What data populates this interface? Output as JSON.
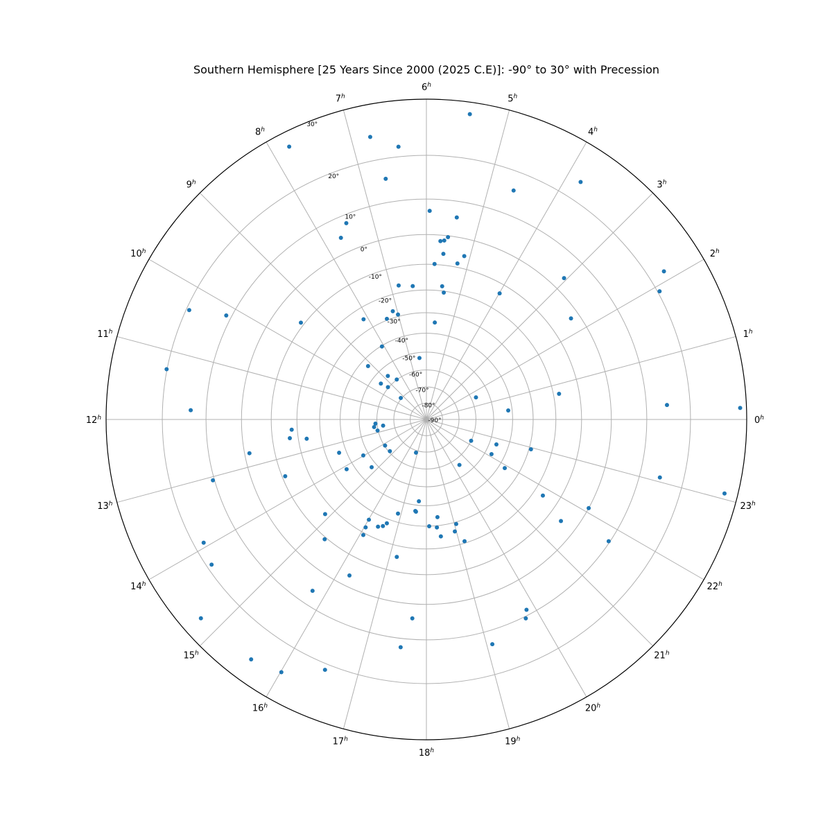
{
  "chart_data": {
    "type": "scatter",
    "projection": "polar (stereographic, south pole at center)",
    "title": "Southern Hemisphere [25 Years Since 2000 (2025 C.E)]: -90° to 30° with Precession",
    "theta_unit": "hours",
    "theta_ticks": [
      "0",
      "1",
      "2",
      "3",
      "4",
      "5",
      "6",
      "7",
      "8",
      "9",
      "10",
      "11",
      "12",
      "13",
      "14",
      "15",
      "16",
      "17",
      "18",
      "19",
      "20",
      "21",
      "22",
      "23"
    ],
    "theta_tick_suffix": "h",
    "r_ticks": [
      "-90°",
      "-80°",
      "-70°",
      "-60°",
      "-50°",
      "-40°",
      "-30°",
      "-20°",
      "-10°",
      "0°",
      "10°",
      "20°",
      "30°"
    ],
    "r_values": [
      -90,
      -80,
      -70,
      -60,
      -50,
      -40,
      -30,
      -20,
      -10,
      0,
      10,
      20,
      30
    ],
    "rlim": [
      -90,
      30
    ],
    "grid": true,
    "marker_color": "#1f77b4",
    "grid_color": "#b0b0b0",
    "points": [
      [
        5.46,
        28.1
      ],
      [
        6.75,
        24.6
      ],
      [
        6.39,
        22.0
      ],
      [
        7.78,
        27.6
      ],
      [
        6.64,
        15.7
      ],
      [
        4.61,
        15.9
      ],
      [
        3.8,
        23.7
      ],
      [
        5.94,
        6.9
      ],
      [
        5.43,
        5.7
      ],
      [
        7.48,
        7.8
      ],
      [
        7.68,
        4.7
      ],
      [
        5.55,
        -0.4
      ],
      [
        5.62,
        -1.6
      ],
      [
        5.7,
        -1.9
      ],
      [
        5.13,
        -5.6
      ],
      [
        5.61,
        -6.0
      ],
      [
        5.8,
        -9.8
      ],
      [
        5.25,
        -8.6
      ],
      [
        2.13,
        23.1
      ],
      [
        3.05,
        3.7
      ],
      [
        1.92,
        20.4
      ],
      [
        6.78,
        -17.0
      ],
      [
        6.39,
        -18.1
      ],
      [
        5.55,
        -18.1
      ],
      [
        5.48,
        -20.6
      ],
      [
        3.99,
        -13.5
      ],
      [
        7.15,
        -27.0
      ],
      [
        7.01,
        -29.1
      ],
      [
        10.17,
        11.3
      ],
      [
        10.35,
        19.4
      ],
      [
        8.14,
        -24.8
      ],
      [
        7.43,
        -29.4
      ],
      [
        9.49,
        -8.8
      ],
      [
        5.67,
        -34.5
      ],
      [
        2.33,
        -2.7
      ],
      [
        8.09,
        -40.4
      ],
      [
        6.43,
        -53.0
      ],
      [
        9.17,
        -43.7
      ],
      [
        11.27,
        20.1
      ],
      [
        8.77,
        -55.1
      ],
      [
        8.44,
        -59.9
      ],
      [
        9.45,
        -55.2
      ],
      [
        9.33,
        -59.6
      ],
      [
        0.73,
        -17.7
      ],
      [
        1.6,
        -57.3
      ],
      [
        9.33,
        -69.5
      ],
      [
        0.23,
        15.0
      ],
      [
        0.14,
        29.0
      ],
      [
        0.42,
        -42.0
      ],
      [
        11.85,
        13.8
      ],
      [
        12.31,
        -59.1
      ],
      [
        12.55,
        -58.1
      ],
      [
        12.85,
        -59.7
      ],
      [
        12.54,
        -63.4
      ],
      [
        12.29,
        -17.7
      ],
      [
        12.52,
        -16.6
      ],
      [
        12.61,
        -23.5
      ],
      [
        22.3,
        -60.0
      ],
      [
        22.69,
        -46.2
      ],
      [
        22.94,
        -29.1
      ],
      [
        14.15,
        -60.4
      ],
      [
        14.73,
        -60.7
      ],
      [
        16.84,
        -68.7
      ],
      [
        13.39,
        -36.4
      ],
      [
        13.98,
        -47.1
      ],
      [
        22.13,
        -46.5
      ],
      [
        12.72,
        -1.5
      ],
      [
        20.4,
        -56.2
      ],
      [
        14.74,
        -47.1
      ],
      [
        21.88,
        -37.0
      ],
      [
        14.13,
        -36.1
      ],
      [
        13.46,
        -11.1
      ],
      [
        23.07,
        14.9
      ],
      [
        13.06,
        10.4
      ],
      [
        23.07,
        27.9
      ],
      [
        21.79,
        -16.1
      ],
      [
        17.65,
        -42.1
      ],
      [
        17.54,
        -37.0
      ],
      [
        17.57,
        -36.7
      ],
      [
        14.87,
        -16.3
      ],
      [
        16.88,
        -34.0
      ],
      [
        18.43,
        -34.0
      ],
      [
        22.09,
        0.0
      ],
      [
        16.01,
        -26.0
      ],
      [
        21.53,
        -5.3
      ],
      [
        16.61,
        -28.0
      ],
      [
        16.38,
        -25.1
      ],
      [
        16.52,
        -26.2
      ],
      [
        16.04,
        -22.4
      ],
      [
        19.06,
        -29.1
      ],
      [
        18.1,
        -30.0
      ],
      [
        18.37,
        -29.2
      ],
      [
        18.95,
        -26.0
      ],
      [
        16.09,
        -19.1
      ],
      [
        18.47,
        -25.0
      ],
      [
        19.16,
        -20.8
      ],
      [
        15.31,
        -9.3
      ],
      [
        21.75,
        9.7
      ],
      [
        13.93,
        18.0
      ],
      [
        17.19,
        -15.5
      ],
      [
        14.27,
        19.0
      ],
      [
        16.25,
        -3.5
      ],
      [
        15.76,
        6.1
      ],
      [
        19.85,
        8.6
      ],
      [
        14.76,
        26.8
      ],
      [
        17.73,
        4.3
      ],
      [
        19.77,
        10.5
      ],
      [
        19.09,
        13.4
      ],
      [
        17.57,
        12.2
      ],
      [
        15.59,
        26.2
      ],
      [
        16.53,
        21.2
      ],
      [
        16.01,
        25.2
      ]
    ]
  }
}
